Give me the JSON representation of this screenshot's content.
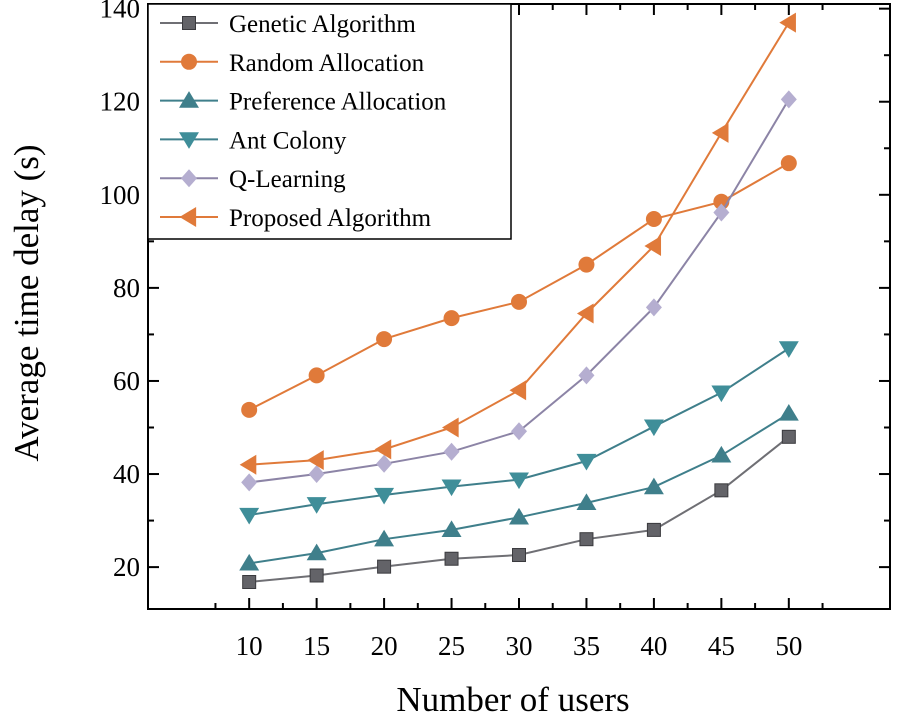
{
  "chart_data": {
    "type": "line",
    "xlabel": "Number of users",
    "ylabel": "Average time delay (s)",
    "x": [
      10,
      15,
      20,
      25,
      30,
      35,
      40,
      45,
      50
    ],
    "xlim": [
      2.5,
      57.5
    ],
    "ylim": [
      11,
      141
    ],
    "xticks": [
      10,
      15,
      20,
      25,
      30,
      35,
      40,
      45,
      50
    ],
    "yticks": [
      20,
      40,
      60,
      80,
      100,
      120,
      140
    ],
    "grid": false,
    "legend_position": "top-left",
    "series": [
      {
        "name": "Genetic Algorithm",
        "marker": "square",
        "line_color": "#6f6f74",
        "marker_color": "#636368",
        "values": [
          16.8,
          18.2,
          20.1,
          21.8,
          22.6,
          26,
          28,
          36.5,
          48
        ]
      },
      {
        "name": "Random Allocation",
        "marker": "circle",
        "line_color": "#e07a3a",
        "marker_color": "#e07a3a",
        "values": [
          53.8,
          61.2,
          69,
          73.5,
          77,
          85,
          94.8,
          98.5,
          106.8
        ]
      },
      {
        "name": "Preference Allocation",
        "marker": "triangle-up",
        "line_color": "#3f7f8b",
        "marker_color": "#3f7f8b",
        "values": [
          20.8,
          23,
          26,
          28,
          30.7,
          33.8,
          37.2,
          44,
          53
        ]
      },
      {
        "name": "Ant Colony",
        "marker": "triangle-down",
        "line_color": "#3f7f8b",
        "marker_color": "#3f8e99",
        "values": [
          31.2,
          33.5,
          35.5,
          37.3,
          38.8,
          42.8,
          50.2,
          57.5,
          67
        ]
      },
      {
        "name": "Q-Learning",
        "marker": "diamond",
        "line_color": "#8c84a6",
        "marker_color": "#b5aed0",
        "values": [
          38.2,
          40,
          42.2,
          44.8,
          49.2,
          61.2,
          75.8,
          96.2,
          120.5
        ]
      },
      {
        "name": "Proposed Algorithm",
        "marker": "triangle-left",
        "line_color": "#e07a3a",
        "marker_color": "#e07a3a",
        "values": [
          42,
          43,
          45.3,
          50,
          58,
          74.5,
          89,
          113.3,
          137
        ]
      }
    ]
  }
}
